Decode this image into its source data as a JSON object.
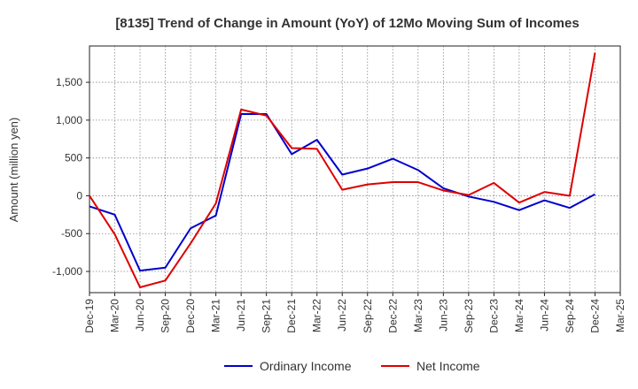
{
  "chart_data": {
    "type": "line",
    "title": "[8135]  Trend of Change in Amount (YoY) of 12Mo Moving Sum of Incomes",
    "xlabel": "",
    "ylabel": "Amount (million yen)",
    "ylim": [
      -1280,
      1980
    ],
    "yticks": [
      -1000,
      -500,
      0,
      500,
      1000,
      1500
    ],
    "ytick_labels": [
      "-1,000",
      "-500",
      "0",
      "500",
      "1,000",
      "1,500"
    ],
    "categories": [
      "Dec-19",
      "Mar-20",
      "Jun-20",
      "Sep-20",
      "Dec-20",
      "Mar-21",
      "Jun-21",
      "Sep-21",
      "Dec-21",
      "Mar-22",
      "Jun-22",
      "Sep-22",
      "Dec-22",
      "Mar-23",
      "Jun-23",
      "Sep-23",
      "Dec-23",
      "Mar-24",
      "Jun-24",
      "Sep-24",
      "Dec-24",
      "Mar-25"
    ],
    "grid": true,
    "legend_position": "bottom-center",
    "series": [
      {
        "name": "Ordinary Income",
        "color": "#0000cc",
        "values": [
          -140,
          -250,
          -990,
          -950,
          -430,
          -260,
          1080,
          1080,
          550,
          740,
          280,
          360,
          490,
          340,
          100,
          -10,
          -80,
          -190,
          -60,
          -160,
          20,
          null
        ]
      },
      {
        "name": "Net Income",
        "color": "#dd0000",
        "values": [
          0,
          -510,
          -1210,
          -1120,
          -630,
          -100,
          1140,
          1060,
          630,
          620,
          80,
          150,
          180,
          180,
          70,
          10,
          170,
          -90,
          50,
          0,
          1890,
          null
        ]
      }
    ]
  }
}
